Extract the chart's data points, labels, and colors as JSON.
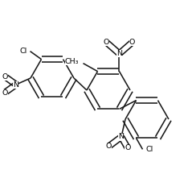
{
  "bg_color": "#ffffff",
  "line_color": "#1a1a1a",
  "lw": 1.15,
  "fs": 6.8,
  "figsize": [
    2.39,
    2.21
  ],
  "dpi": 100,
  "xlim": [
    0,
    239
  ],
  "ylim": [
    0,
    221
  ]
}
